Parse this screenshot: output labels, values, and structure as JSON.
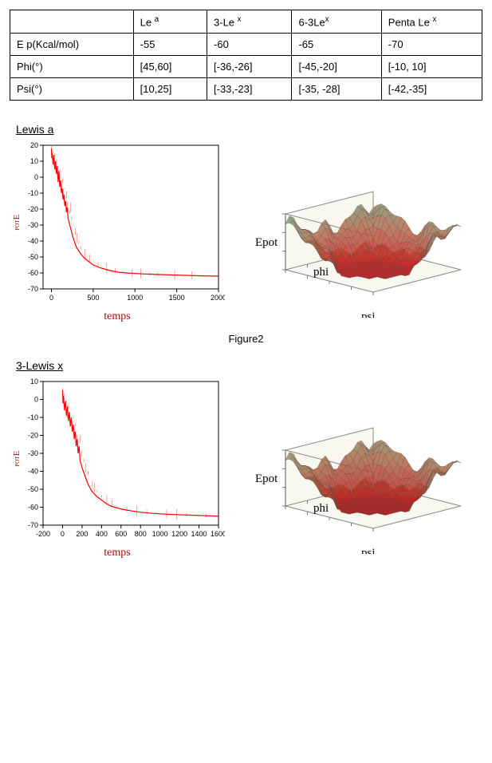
{
  "table": {
    "columns": [
      "",
      "Le ᵃ",
      "3-Le ˣ",
      "6-3Leˣ",
      "Penta Le ˣ"
    ],
    "rows": [
      [
        "E p(Kcal/mol)",
        "-55",
        "-60",
        "-65",
        "-70"
      ],
      [
        "Phi(°)",
        "[45,60]",
        "[-36,-26]",
        "[-45,-20]",
        "[-10, 10]"
      ],
      [
        "Psi(°)",
        "[10,25]",
        "[-33,-23]",
        "[-35, -28]",
        "[-42,-35]"
      ]
    ]
  },
  "section1": {
    "title": "Lewis a",
    "chart2d": {
      "type": "line",
      "series_color": "#ff0000",
      "background_color": "#ffffff",
      "axis_color": "#000000",
      "xlim": [
        -100,
        2000
      ],
      "ylim": [
        -70,
        20
      ],
      "xticks": [
        0,
        500,
        1000,
        1500,
        2000
      ],
      "yticks": [
        -70,
        -60,
        -50,
        -40,
        -30,
        -20,
        -10,
        0,
        10,
        20
      ],
      "x_label": "temps",
      "y_label": "E_POT",
      "data": [
        [
          0,
          18
        ],
        [
          5,
          12
        ],
        [
          10,
          15
        ],
        [
          20,
          8
        ],
        [
          30,
          14
        ],
        [
          40,
          5
        ],
        [
          50,
          10
        ],
        [
          60,
          2
        ],
        [
          70,
          7
        ],
        [
          80,
          -3
        ],
        [
          90,
          4
        ],
        [
          100,
          -6
        ],
        [
          110,
          -2
        ],
        [
          120,
          -10
        ],
        [
          130,
          -7
        ],
        [
          140,
          -14
        ],
        [
          150,
          -11
        ],
        [
          160,
          -18
        ],
        [
          170,
          -15
        ],
        [
          180,
          -22
        ],
        [
          190,
          -19
        ],
        [
          200,
          -26
        ],
        [
          220,
          -30
        ],
        [
          240,
          -34
        ],
        [
          260,
          -38
        ],
        [
          280,
          -41
        ],
        [
          300,
          -44
        ],
        [
          350,
          -48
        ],
        [
          400,
          -51
        ],
        [
          450,
          -53
        ],
        [
          500,
          -55
        ],
        [
          600,
          -57
        ],
        [
          700,
          -58.5
        ],
        [
          800,
          -59.5
        ],
        [
          900,
          -60
        ],
        [
          1000,
          -60.3
        ],
        [
          1100,
          -60.6
        ],
        [
          1200,
          -60.8
        ],
        [
          1400,
          -61.2
        ],
        [
          1600,
          -61.5
        ],
        [
          1800,
          -61.8
        ],
        [
          2000,
          -62
        ]
      ]
    },
    "chart3d": {
      "x_label": "phi",
      "y_label": "psi",
      "z_label": "Epot",
      "top_color": "#6aa884",
      "mid_color": "#b36a4a",
      "low_color": "#d21f1f",
      "box_color": "#f8f7f0",
      "line_color": "#4a4a4a"
    }
  },
  "figure_caption": "Figure2",
  "section2": {
    "title": "3-Lewis x",
    "chart2d": {
      "type": "line",
      "series_color": "#ff0000",
      "background_color": "#ffffff",
      "axis_color": "#000000",
      "xlim": [
        -200,
        1600
      ],
      "ylim": [
        -70,
        10
      ],
      "xticks": [
        -200,
        0,
        200,
        400,
        600,
        800,
        1000,
        1200,
        1400,
        1600
      ],
      "yticks": [
        -70,
        -60,
        -50,
        -40,
        -30,
        -20,
        -10,
        0,
        10
      ],
      "x_label": "temps",
      "y_label": "E_POT",
      "data": [
        [
          0,
          5
        ],
        [
          5,
          -2
        ],
        [
          10,
          2
        ],
        [
          20,
          -6
        ],
        [
          30,
          -1
        ],
        [
          40,
          -9
        ],
        [
          50,
          -4
        ],
        [
          60,
          -12
        ],
        [
          70,
          -7
        ],
        [
          80,
          -15
        ],
        [
          90,
          -10
        ],
        [
          100,
          -18
        ],
        [
          110,
          -14
        ],
        [
          120,
          -22
        ],
        [
          130,
          -18
        ],
        [
          140,
          -26
        ],
        [
          150,
          -22
        ],
        [
          160,
          -30
        ],
        [
          170,
          -26
        ],
        [
          180,
          -34
        ],
        [
          200,
          -38
        ],
        [
          220,
          -41
        ],
        [
          240,
          -44
        ],
        [
          260,
          -47
        ],
        [
          280,
          -49
        ],
        [
          300,
          -51
        ],
        [
          350,
          -54
        ],
        [
          400,
          -56
        ],
        [
          450,
          -58
        ],
        [
          500,
          -59.5
        ],
        [
          600,
          -61
        ],
        [
          700,
          -62
        ],
        [
          800,
          -62.8
        ],
        [
          900,
          -63.3
        ],
        [
          1000,
          -63.7
        ],
        [
          1100,
          -64
        ],
        [
          1200,
          -64.2
        ],
        [
          1400,
          -64.6
        ],
        [
          1600,
          -65
        ]
      ]
    },
    "chart3d": {
      "x_label": "phi",
      "y_label": "psi",
      "z_label": "Epot",
      "top_color": "#8a9d72",
      "mid_color": "#b06040",
      "low_color": "#c21a1a",
      "box_color": "#f8f7f0",
      "line_color": "#4a4a4a"
    }
  }
}
